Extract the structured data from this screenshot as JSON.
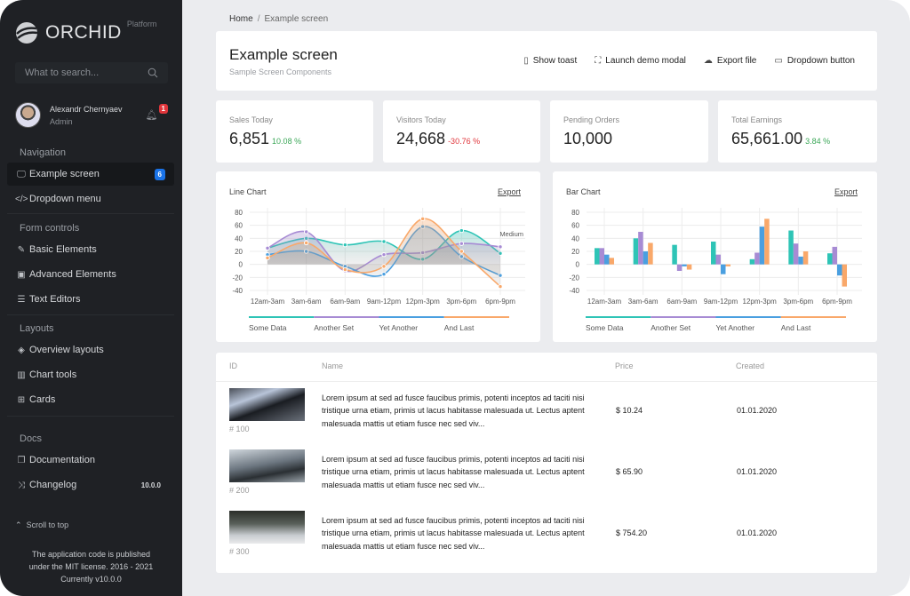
{
  "brand": {
    "name": "ORCHID",
    "suffix": "Platform"
  },
  "search": {
    "placeholder": "What to search..."
  },
  "user": {
    "name": "Alexandr Chernyaev",
    "role": "Admin",
    "notifications": "1"
  },
  "sidebar": {
    "sections": [
      "Navigation",
      "Form controls",
      "Layouts",
      "Docs"
    ],
    "items": [
      {
        "label": "Example screen",
        "icon": "monitor-icon",
        "badge": "6"
      },
      {
        "label": "Dropdown menu",
        "icon": "code-icon"
      },
      {
        "label": "Basic Elements",
        "icon": "edit-icon"
      },
      {
        "label": "Advanced Elements",
        "icon": "briefcase-icon"
      },
      {
        "label": "Text Editors",
        "icon": "list-icon"
      },
      {
        "label": "Overview layouts",
        "icon": "layers-icon"
      },
      {
        "label": "Chart tools",
        "icon": "bar-chart-icon"
      },
      {
        "label": "Cards",
        "icon": "grid-icon"
      },
      {
        "label": "Documentation",
        "icon": "docs-icon"
      },
      {
        "label": "Changelog",
        "icon": "shuffle-icon",
        "badge": "10.0.0"
      }
    ],
    "scroll_top": "Scroll to top",
    "footer": [
      "The application code is published",
      "under the MIT license. 2016 - 2021",
      "Currently v10.0.0"
    ]
  },
  "breadcrumb": [
    "Home",
    "Example screen"
  ],
  "header": {
    "title": "Example screen",
    "subtitle": "Sample Screen Components",
    "actions": [
      {
        "label": "Show toast",
        "icon": "clipboard-icon"
      },
      {
        "label": "Launch demo modal",
        "icon": "fullscreen-icon"
      },
      {
        "label": "Export file",
        "icon": "cloud-download-icon"
      },
      {
        "label": "Dropdown button",
        "icon": "folder-icon"
      }
    ]
  },
  "stats": [
    {
      "label": "Sales Today",
      "value": "6,851",
      "change": "10.08 %",
      "trend": "up"
    },
    {
      "label": "Visitors Today",
      "value": "24,668",
      "change": "-30.76 %",
      "trend": "down"
    },
    {
      "label": "Pending Orders",
      "value": "10,000",
      "change": "",
      "trend": ""
    },
    {
      "label": "Total Earnings",
      "value": "65,661.00",
      "change": "3.84 %",
      "trend": "up"
    }
  ],
  "chart_data": [
    {
      "type": "line",
      "title": "Line Chart",
      "export_label": "Export",
      "annotation": "Medium",
      "smooth": true,
      "grid": true,
      "legend": "bottom",
      "categories": [
        "12am-3am",
        "3am-6am",
        "6am-9am",
        "9am-12pm",
        "12pm-3pm",
        "3pm-6pm",
        "6pm-9pm"
      ],
      "ylim": [
        -40,
        80
      ],
      "yticks": [
        80,
        60,
        40,
        20,
        0,
        -20,
        -40
      ],
      "series": [
        {
          "name": "Some Data",
          "color": "#2ec4b6",
          "values": [
            25,
            40,
            30,
            35,
            8,
            52,
            17
          ]
        },
        {
          "name": "Another Set",
          "color": "#a78bd4",
          "values": [
            25,
            50,
            -10,
            15,
            18,
            32,
            27
          ]
        },
        {
          "name": "Yet Another",
          "color": "#4a9fe0",
          "values": [
            15,
            20,
            -3,
            -15,
            58,
            12,
            -17
          ]
        },
        {
          "name": "And Last",
          "color": "#f9a86a",
          "values": [
            10,
            33,
            -8,
            -3,
            70,
            20,
            -34
          ]
        }
      ]
    },
    {
      "type": "bar",
      "title": "Bar Chart",
      "export_label": "Export",
      "grid": true,
      "legend": "bottom",
      "categories": [
        "12am-3am",
        "3am-6am",
        "6am-9am",
        "9am-12pm",
        "12pm-3pm",
        "3pm-6pm",
        "6pm-9pm"
      ],
      "ylim": [
        -40,
        80
      ],
      "yticks": [
        80,
        60,
        40,
        20,
        0,
        -20,
        -40
      ],
      "series": [
        {
          "name": "Some Data",
          "color": "#2ec4b6",
          "values": [
            25,
            40,
            30,
            35,
            8,
            52,
            17
          ]
        },
        {
          "name": "Another Set",
          "color": "#a78bd4",
          "values": [
            25,
            50,
            -10,
            15,
            18,
            32,
            27
          ]
        },
        {
          "name": "Yet Another",
          "color": "#4a9fe0",
          "values": [
            15,
            20,
            -3,
            -15,
            58,
            12,
            -17
          ]
        },
        {
          "name": "And Last",
          "color": "#f9a86a",
          "values": [
            10,
            33,
            -8,
            -3,
            70,
            20,
            -34
          ]
        }
      ]
    }
  ],
  "table": {
    "columns": [
      "ID",
      "Name",
      "Price",
      "Created"
    ],
    "rows": [
      {
        "id": "# 100",
        "name": "Lorem ipsum at sed ad fusce faucibus primis, potenti inceptos ad taciti nisi tristique urna etiam, primis ut lacus habitasse malesuada ut. Lectus aptent malesuada mattis ut etiam fusce nec sed viv...",
        "price": "$ 10.24",
        "created": "01.01.2020"
      },
      {
        "id": "# 200",
        "name": "Lorem ipsum at sed ad fusce faucibus primis, potenti inceptos ad taciti nisi tristique urna etiam, primis ut lacus habitasse malesuada ut. Lectus aptent malesuada mattis ut etiam fusce nec sed viv...",
        "price": "$ 65.90",
        "created": "01.01.2020"
      },
      {
        "id": "# 300",
        "name": "Lorem ipsum at sed ad fusce faucibus primis, potenti inceptos ad taciti nisi tristique urna etiam, primis ut lacus habitasse malesuada ut. Lectus aptent malesuada mattis ut etiam fusce nec sed viv...",
        "price": "$ 754.20",
        "created": "01.01.2020"
      }
    ]
  }
}
